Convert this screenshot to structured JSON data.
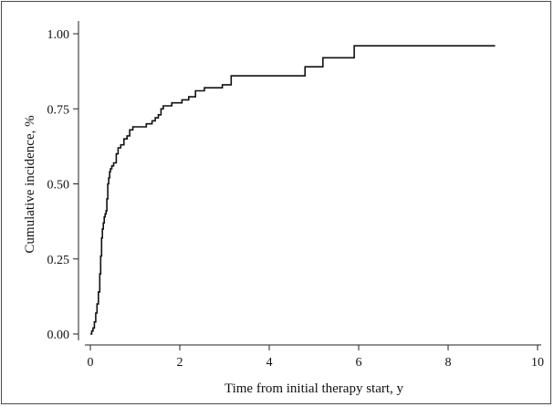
{
  "chart_data": {
    "type": "line",
    "step": true,
    "title": "",
    "xlabel": "Time from initial therapy start, y",
    "ylabel": "Cumulative incidence, %",
    "xlim": [
      0,
      10
    ],
    "ylim": [
      0,
      1
    ],
    "x_ticks": [
      0,
      2,
      4,
      6,
      8,
      10
    ],
    "x_tick_labels": [
      "0",
      "2",
      "4",
      "6",
      "8",
      "10"
    ],
    "y_ticks": [
      0,
      0.25,
      0.5,
      0.75,
      1.0
    ],
    "y_tick_labels": [
      "0.00",
      "0.25",
      "0.50",
      "0.75",
      "1.00"
    ],
    "grid": false,
    "line_color": "#111111",
    "series": [
      {
        "x": [
          0.0,
          0.03,
          0.06,
          0.09,
          0.12,
          0.15,
          0.18,
          0.21,
          0.23,
          0.25,
          0.27,
          0.29,
          0.31,
          0.33,
          0.35,
          0.37,
          0.39,
          0.41,
          0.43,
          0.45,
          0.48,
          0.52,
          0.58,
          0.62,
          0.68,
          0.75,
          0.82,
          0.88,
          0.95,
          1.05,
          1.25,
          1.38,
          1.45,
          1.52,
          1.58,
          1.63,
          1.82,
          2.05,
          2.2,
          2.35,
          2.55,
          2.78,
          2.95,
          3.15,
          3.55,
          4.1,
          4.8,
          5.2,
          5.9,
          9.05
        ],
        "y": [
          0.0,
          0.01,
          0.02,
          0.04,
          0.07,
          0.1,
          0.14,
          0.2,
          0.26,
          0.32,
          0.35,
          0.37,
          0.39,
          0.4,
          0.41,
          0.45,
          0.5,
          0.52,
          0.54,
          0.55,
          0.56,
          0.57,
          0.6,
          0.62,
          0.63,
          0.65,
          0.66,
          0.68,
          0.69,
          0.69,
          0.7,
          0.71,
          0.72,
          0.73,
          0.75,
          0.76,
          0.77,
          0.78,
          0.79,
          0.81,
          0.82,
          0.82,
          0.83,
          0.86,
          0.86,
          0.86,
          0.89,
          0.92,
          0.96,
          0.96
        ]
      }
    ]
  }
}
